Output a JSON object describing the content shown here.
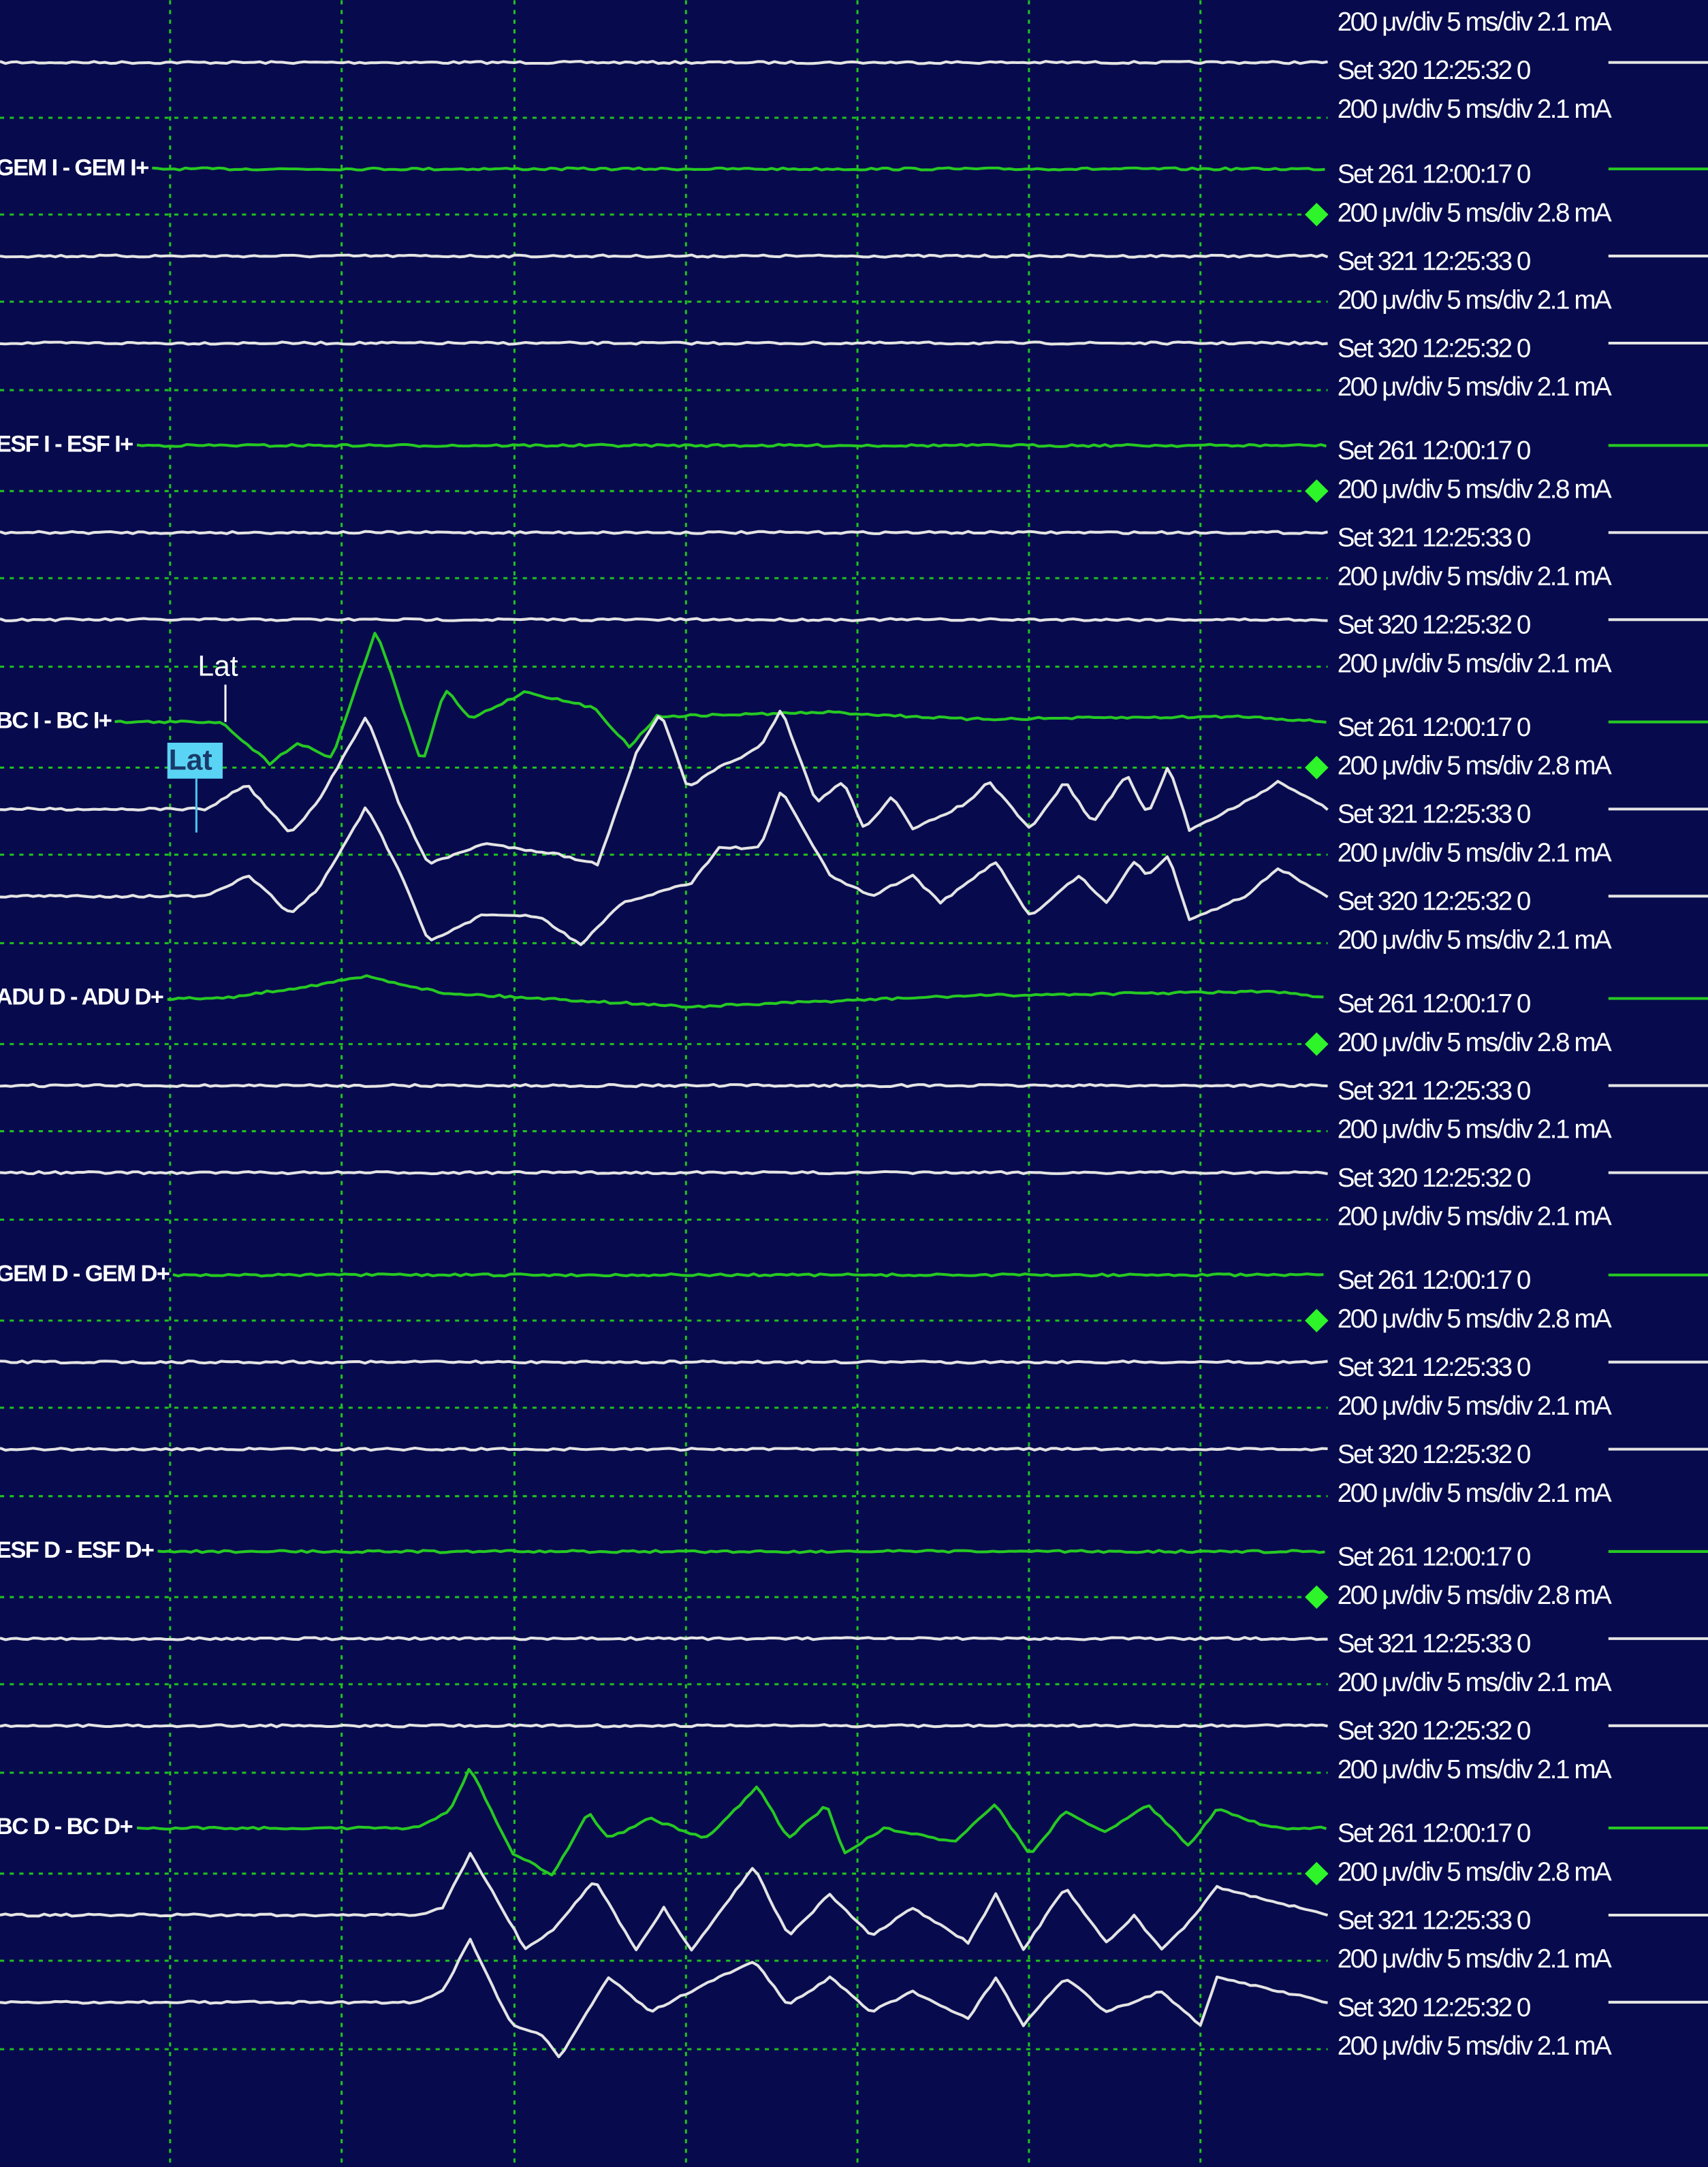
{
  "top_partial": {
    "info_top": "200 μv/div 5 ms/div 2.1 mA",
    "set": "Set 320 12:25:32 0",
    "info": "200 μv/div 5 ms/div 2.1 mA"
  },
  "channels": [
    {
      "label": "GEM I - GEM I+",
      "traces": [
        {
          "set": "Set 261 12:00:17 0",
          "info": "200 μv/div 5 ms/div 2.8 mA"
        },
        {
          "set": "Set 321 12:25:33 0",
          "info": "200 μv/div 5 ms/div 2.1 mA"
        },
        {
          "set": "Set 320 12:25:32 0",
          "info": "200 μv/div 5 ms/div 2.1 mA"
        }
      ]
    },
    {
      "label": "ESF I - ESF I+",
      "traces": [
        {
          "set": "Set 261 12:00:17 0",
          "info": "200 μv/div 5 ms/div 2.8 mA"
        },
        {
          "set": "Set 321 12:25:33 0",
          "info": "200 μv/div 5 ms/div 2.1 mA"
        },
        {
          "set": "Set 320 12:25:32 0",
          "info": "200 μv/div 5 ms/div 2.1 mA"
        }
      ]
    },
    {
      "label": "BC I - BC I+",
      "traces": [
        {
          "set": "Set 261 12:00:17 0",
          "info": "200 μv/div 5 ms/div 2.8 mA"
        },
        {
          "set": "Set 321 12:25:33 0",
          "info": "200 μv/div 5 ms/div 2.1 mA"
        },
        {
          "set": "Set 320 12:25:32 0",
          "info": "200 μv/div 5 ms/div 2.1 mA"
        }
      ]
    },
    {
      "label": "ADU D - ADU D+",
      "traces": [
        {
          "set": "Set 261 12:00:17 0",
          "info": "200 μv/div 5 ms/div 2.8 mA"
        },
        {
          "set": "Set 321 12:25:33 0",
          "info": "200 μv/div 5 ms/div 2.1 mA"
        },
        {
          "set": "Set 320 12:25:32 0",
          "info": "200 μv/div 5 ms/div 2.1 mA"
        }
      ]
    },
    {
      "label": "GEM D - GEM D+",
      "traces": [
        {
          "set": "Set 261 12:00:17 0",
          "info": "200 μv/div 5 ms/div 2.8 mA"
        },
        {
          "set": "Set 321 12:25:33 0",
          "info": "200 μv/div 5 ms/div 2.1 mA"
        },
        {
          "set": "Set 320 12:25:32 0",
          "info": "200 μv/div 5 ms/div 2.1 mA"
        }
      ]
    },
    {
      "label": "ESF D - ESF D+",
      "traces": [
        {
          "set": "Set 261 12:00:17 0",
          "info": "200 μv/div 5 ms/div 2.8 mA"
        },
        {
          "set": "Set 321 12:25:33 0",
          "info": "200 μv/div 5 ms/div 2.1 mA"
        },
        {
          "set": "Set 320 12:25:32 0",
          "info": "200 μv/div 5 ms/div 2.1 mA"
        }
      ]
    },
    {
      "label": "BC D - BC D+",
      "traces": [
        {
          "set": "Set 261 12:00:17 0",
          "info": "200 μv/div 5 ms/div 2.8 mA"
        },
        {
          "set": "Set 321 12:25:33 0",
          "info": "200 μv/div 5 ms/div 2.1 mA"
        },
        {
          "set": "Set 320 12:25:32 0",
          "info": "200 μv/div 5 ms/div 2.1 mA"
        }
      ]
    }
  ],
  "markers": [
    "Lat",
    "Lat"
  ]
}
